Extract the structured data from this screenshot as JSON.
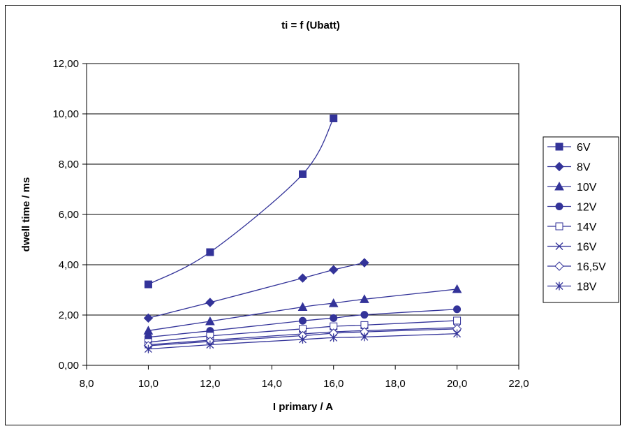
{
  "chart_data": {
    "type": "line",
    "title": "ti = f (Ubatt)",
    "xlabel": "I primary / A",
    "ylabel": "dwell time / ms",
    "xlim": [
      8,
      22
    ],
    "ylim": [
      0,
      12
    ],
    "x_ticks": [
      "8,0",
      "10,0",
      "12,0",
      "14,0",
      "16,0",
      "18,0",
      "20,0",
      "22,0"
    ],
    "y_ticks": [
      "0,00",
      "2,00",
      "4,00",
      "6,00",
      "8,00",
      "10,00",
      "12,00"
    ],
    "grid": "horizontal major gridlines",
    "legend_position": "right",
    "line_color": "#333399",
    "series": [
      {
        "name": "6V",
        "marker": "square-filled",
        "x": [
          10,
          12,
          15,
          16
        ],
        "y": [
          3.22,
          4.5,
          7.6,
          9.82
        ]
      },
      {
        "name": "8V",
        "marker": "diamond-filled",
        "x": [
          10,
          12,
          15,
          16,
          17
        ],
        "y": [
          1.88,
          2.5,
          3.47,
          3.8,
          4.08
        ]
      },
      {
        "name": "10V",
        "marker": "triangle-filled",
        "x": [
          10,
          12,
          15,
          16,
          17,
          20
        ],
        "y": [
          1.38,
          1.75,
          2.32,
          2.47,
          2.63,
          3.03
        ]
      },
      {
        "name": "12V",
        "marker": "circle-filled",
        "x": [
          10,
          12,
          15,
          16,
          17,
          20
        ],
        "y": [
          1.12,
          1.37,
          1.77,
          1.88,
          2.01,
          2.23
        ]
      },
      {
        "name": "14V",
        "marker": "square-open",
        "x": [
          10,
          12,
          15,
          16,
          17,
          20
        ],
        "y": [
          0.92,
          1.17,
          1.45,
          1.55,
          1.6,
          1.78
        ]
      },
      {
        "name": "16V",
        "marker": "x",
        "x": [
          10,
          12,
          15,
          16,
          17,
          20
        ],
        "y": [
          0.82,
          1.0,
          1.25,
          1.33,
          1.38,
          1.5
        ]
      },
      {
        "name": "16,5V",
        "marker": "diamond-open",
        "x": [
          10,
          12,
          15,
          16,
          17,
          20
        ],
        "y": [
          0.78,
          0.95,
          1.18,
          1.28,
          1.33,
          1.45
        ]
      },
      {
        "name": "18V",
        "marker": "asterisk",
        "x": [
          10,
          12,
          15,
          16,
          17,
          20
        ],
        "y": [
          0.65,
          0.82,
          1.03,
          1.1,
          1.13,
          1.26
        ]
      }
    ]
  }
}
